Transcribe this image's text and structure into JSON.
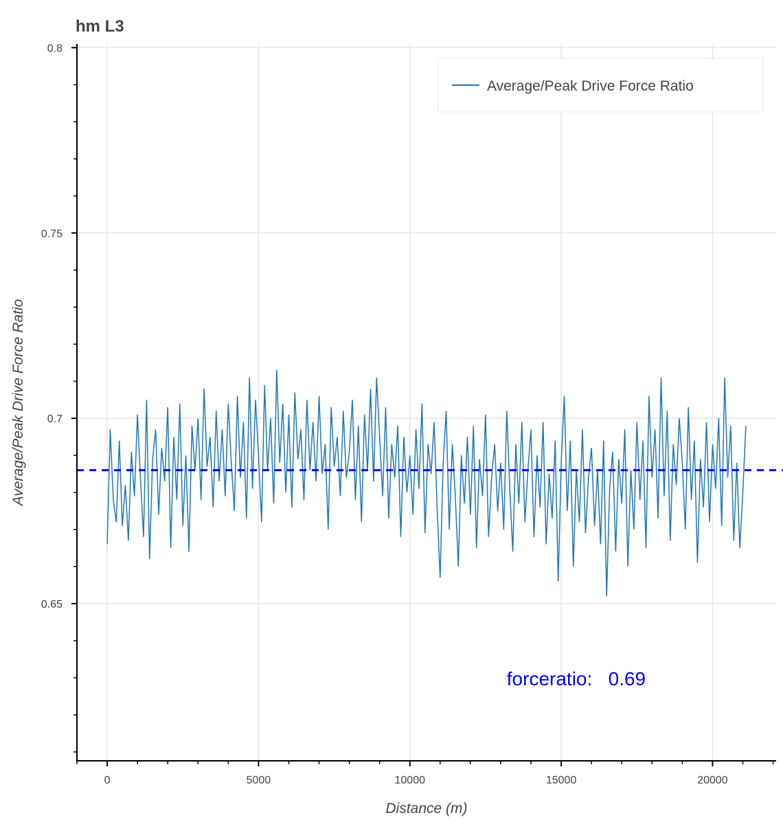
{
  "chart_data": {
    "type": "line",
    "title": "hm L3",
    "xlabel": "Distance (m)",
    "ylabel": "Average/Peak Drive Force Ratio",
    "xlim": [
      -1000,
      22100
    ],
    "ylim": [
      0.6076,
      0.801
    ],
    "x_ticks": [
      0,
      5000,
      10000,
      15000,
      20000
    ],
    "x_tick_labels": [
      "0",
      "5000",
      "10000",
      "15000",
      "20000"
    ],
    "x_minor_step": 1000,
    "y_ticks": [
      0.65,
      0.7,
      0.75,
      0.8
    ],
    "y_tick_labels": [
      "0.65",
      "0.7",
      "0.75",
      "0.8"
    ],
    "y_minor_step": 0.01,
    "grid": true,
    "legend": {
      "position": "top-right",
      "entries": [
        "Average/Peak Drive Force Ratio"
      ]
    },
    "colors": {
      "series": "#1f77b4",
      "mean_line": "#0000ff",
      "grid": "#e5e5e5",
      "text": "#444444"
    },
    "series": [
      {
        "name": "Average/Peak Drive Force Ratio",
        "x_start": 0,
        "x_step": 100,
        "values": [
          0.666,
          0.697,
          0.678,
          0.672,
          0.694,
          0.671,
          0.682,
          0.667,
          0.691,
          0.679,
          0.701,
          0.684,
          0.668,
          0.705,
          0.662,
          0.689,
          0.697,
          0.674,
          0.692,
          0.683,
          0.703,
          0.665,
          0.695,
          0.678,
          0.704,
          0.671,
          0.69,
          0.664,
          0.698,
          0.686,
          0.7,
          0.678,
          0.708,
          0.687,
          0.695,
          0.676,
          0.702,
          0.683,
          0.697,
          0.679,
          0.704,
          0.688,
          0.675,
          0.706,
          0.684,
          0.699,
          0.673,
          0.711,
          0.681,
          0.705,
          0.69,
          0.672,
          0.709,
          0.686,
          0.7,
          0.677,
          0.713,
          0.688,
          0.704,
          0.68,
          0.701,
          0.676,
          0.707,
          0.689,
          0.697,
          0.678,
          0.705,
          0.686,
          0.699,
          0.683,
          0.706,
          0.685,
          0.693,
          0.67,
          0.703,
          0.687,
          0.695,
          0.679,
          0.702,
          0.684,
          0.691,
          0.705,
          0.678,
          0.698,
          0.672,
          0.701,
          0.686,
          0.708,
          0.683,
          0.711,
          0.695,
          0.679,
          0.703,
          0.673,
          0.693,
          0.684,
          0.698,
          0.668,
          0.695,
          0.68,
          0.69,
          0.674,
          0.697,
          0.681,
          0.704,
          0.669,
          0.693,
          0.685,
          0.699,
          0.676,
          0.657,
          0.688,
          0.702,
          0.67,
          0.693,
          0.679,
          0.66,
          0.69,
          0.677,
          0.695,
          0.674,
          0.698,
          0.665,
          0.689,
          0.679,
          0.701,
          0.668,
          0.684,
          0.693,
          0.675,
          0.688,
          0.67,
          0.702,
          0.681,
          0.664,
          0.693,
          0.677,
          0.699,
          0.672,
          0.686,
          0.697,
          0.668,
          0.69,
          0.676,
          0.699,
          0.666,
          0.685,
          0.673,
          0.694,
          0.656,
          0.688,
          0.706,
          0.675,
          0.694,
          0.66,
          0.686,
          0.672,
          0.697,
          0.669,
          0.684,
          0.692,
          0.671,
          0.686,
          0.666,
          0.694,
          0.652,
          0.681,
          0.691,
          0.664,
          0.689,
          0.677,
          0.697,
          0.66,
          0.686,
          0.67,
          0.699,
          0.678,
          0.694,
          0.665,
          0.706,
          0.684,
          0.697,
          0.673,
          0.711,
          0.679,
          0.702,
          0.667,
          0.693,
          0.682,
          0.7,
          0.688,
          0.67,
          0.703,
          0.678,
          0.694,
          0.661,
          0.689,
          0.676,
          0.699,
          0.672,
          0.693,
          0.681,
          0.7,
          0.671,
          0.711,
          0.684,
          0.698,
          0.667,
          0.688,
          0.665,
          0.68,
          0.698
        ]
      }
    ],
    "mean_line": {
      "value": 0.686,
      "style": "dashed"
    },
    "annotation": {
      "text": "forceratio:   0.69",
      "x": 13200,
      "y": 0.628
    }
  }
}
